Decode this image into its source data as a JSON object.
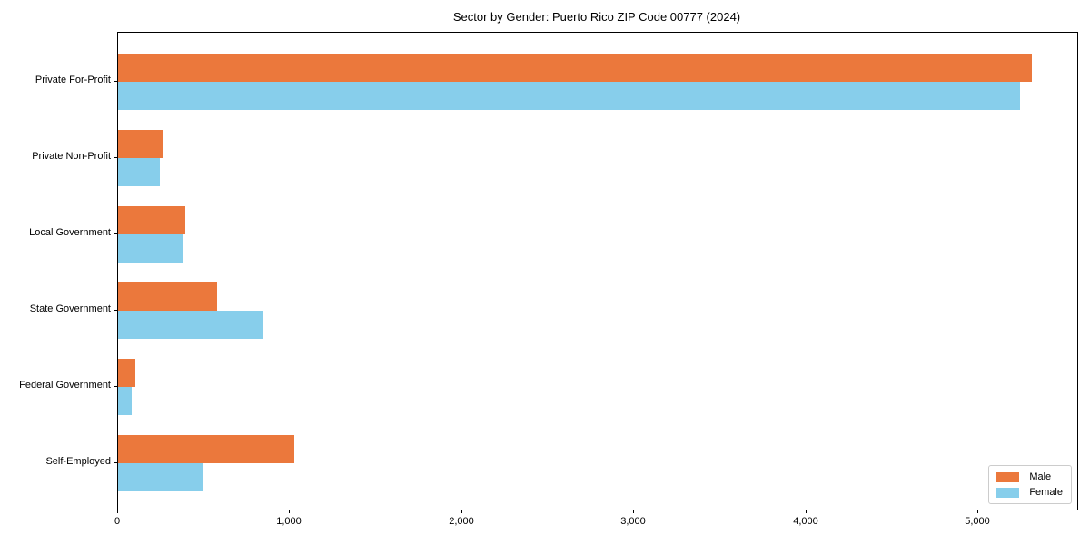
{
  "chart_data": {
    "type": "bar",
    "orientation": "horizontal",
    "title": "Sector by Gender: Puerto Rico ZIP Code 00777 (2024)",
    "categories": [
      "Private For-Profit",
      "Private Non-Profit",
      "Local Government",
      "State Government",
      "Federal Government",
      "Self-Employed"
    ],
    "series": [
      {
        "name": "Male",
        "color": "#EB783C",
        "values": [
          5310,
          265,
          390,
          575,
          100,
          1025
        ]
      },
      {
        "name": "Female",
        "color": "#87CEEB",
        "values": [
          5240,
          245,
          375,
          845,
          80,
          495
        ]
      }
    ],
    "xlabel": "",
    "ylabel": "",
    "xlim": [
      0,
      5575
    ],
    "x_ticks": [
      0,
      1000,
      2000,
      3000,
      4000,
      5000
    ],
    "x_tick_labels": [
      "0",
      "1,000",
      "2,000",
      "3,000",
      "4,000",
      "5,000"
    ],
    "grid": false,
    "legend": {
      "position": "lower right",
      "entries": [
        "Male",
        "Female"
      ]
    },
    "colors": {
      "male": "#EB783C",
      "female": "#87CEEB",
      "spine": "#000000",
      "legend_border": "#cccccc",
      "background": "#ffffff"
    }
  }
}
